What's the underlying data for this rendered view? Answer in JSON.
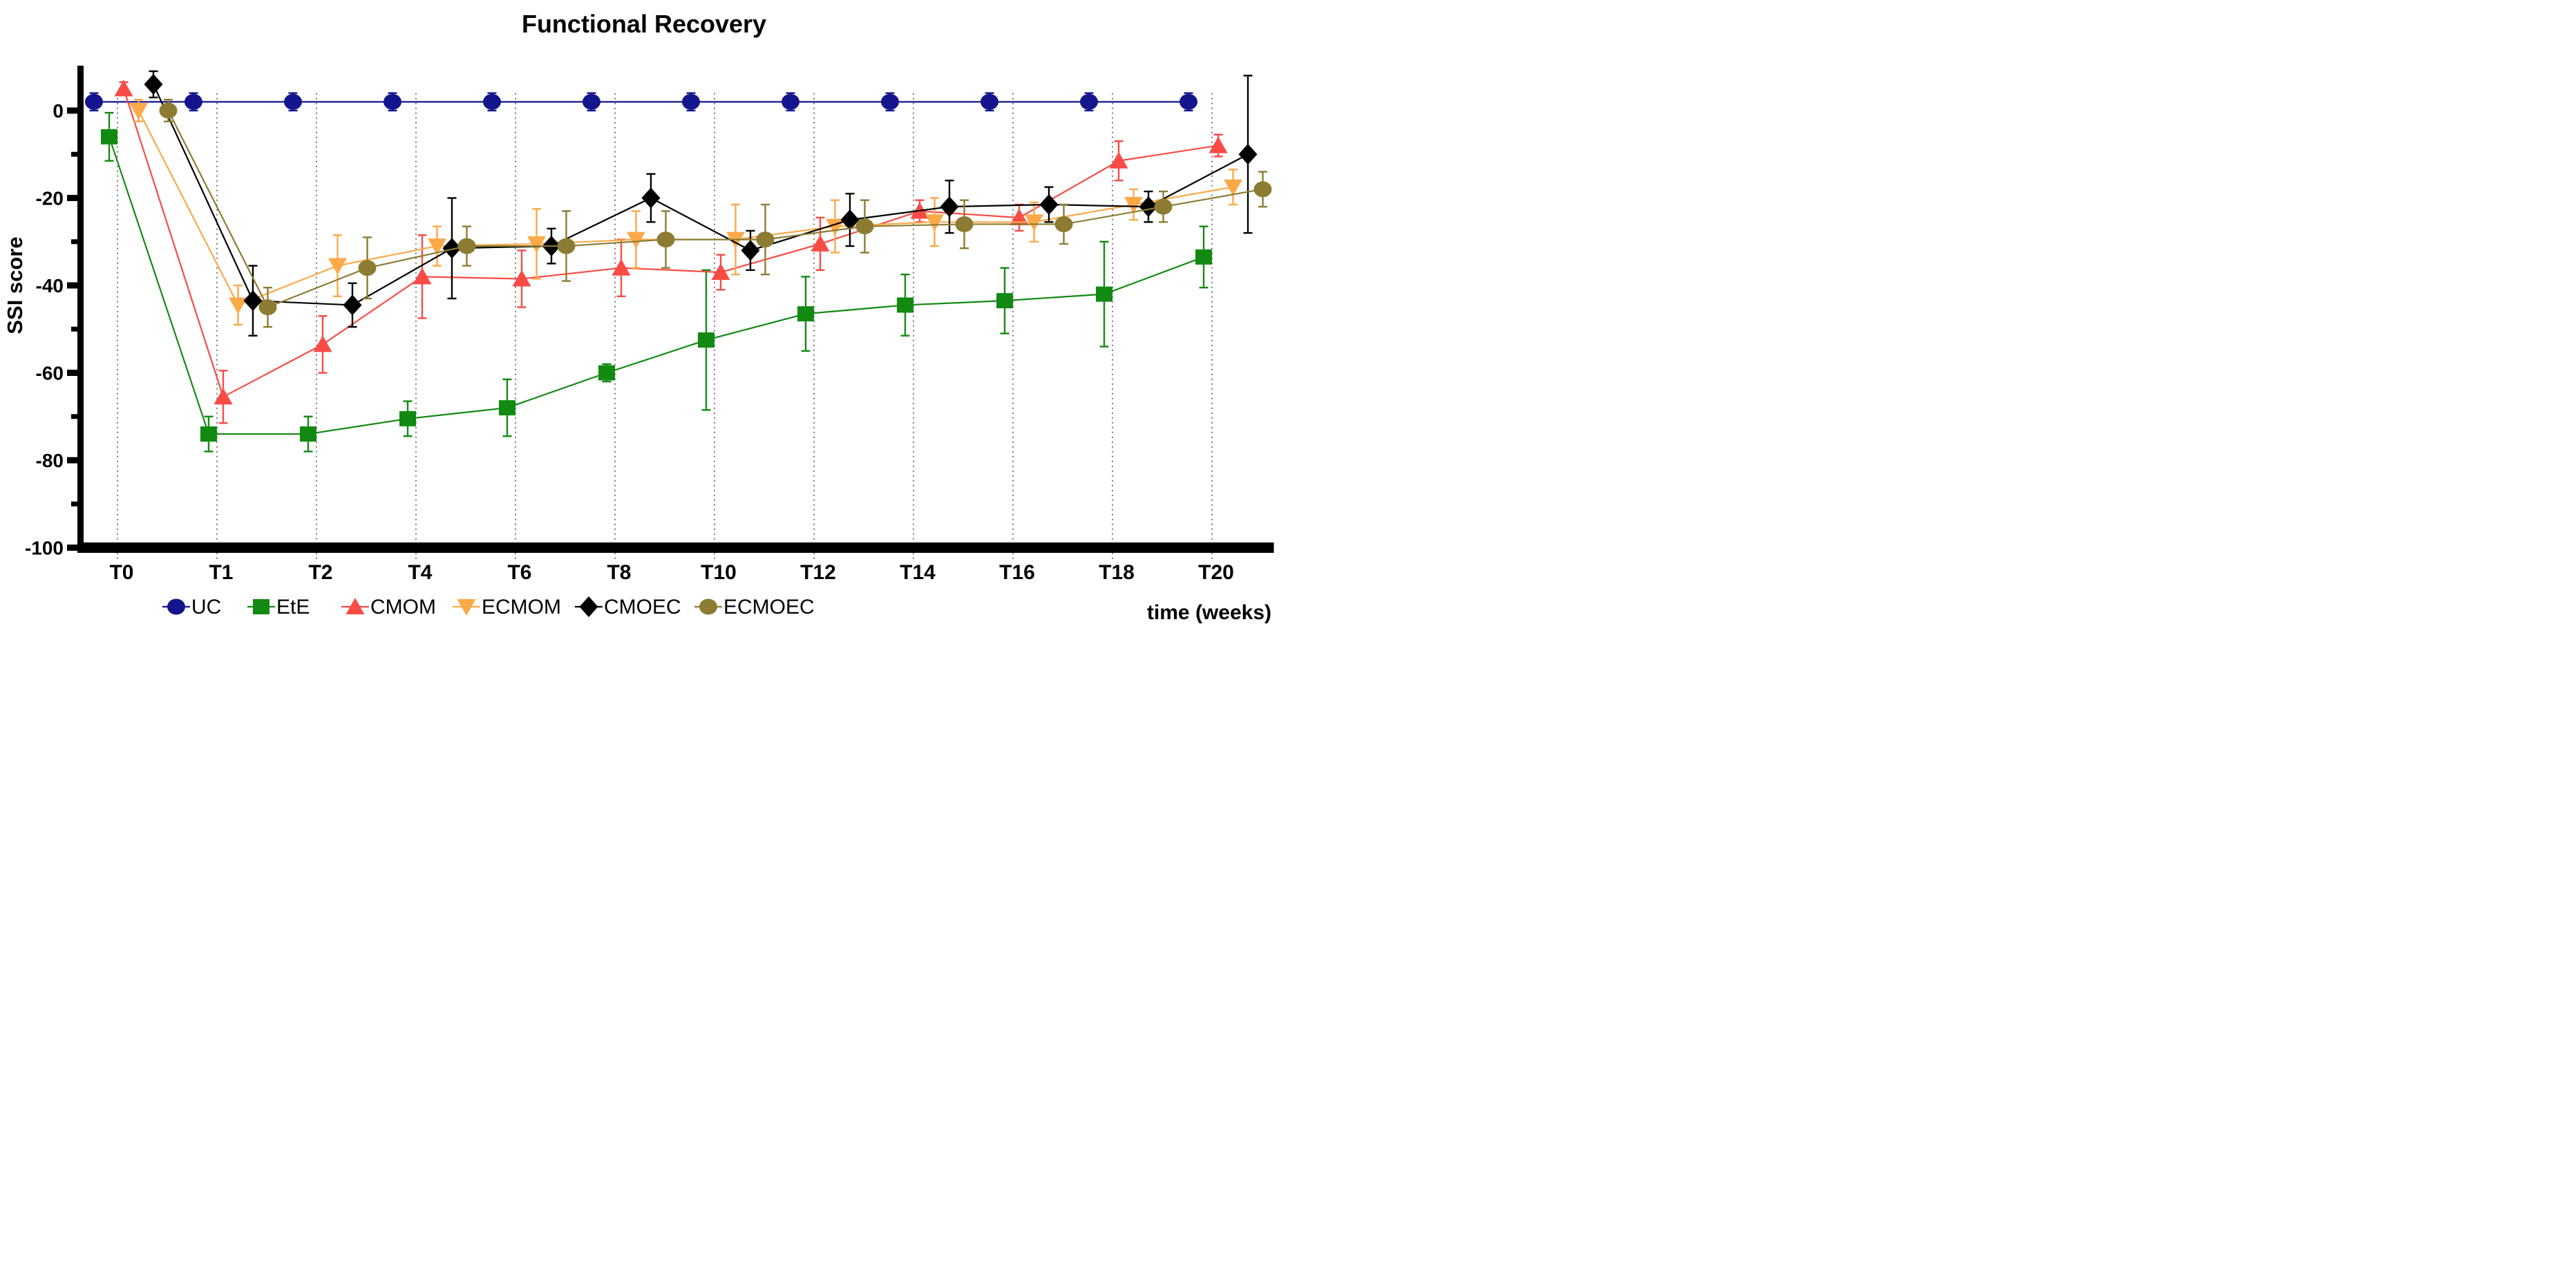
{
  "title": "Functional Recovery",
  "y_axis_label": "SSI score",
  "x_axis_label": "time (weeks)",
  "chart_data": {
    "type": "line",
    "categories": [
      "T0",
      "T1",
      "T2",
      "T4",
      "T6",
      "T8",
      "T10",
      "T12",
      "T14",
      "T16",
      "T18",
      "T20"
    ],
    "ylim": [
      -100,
      10
    ],
    "yticks": [
      0,
      -20,
      -40,
      -60,
      -80,
      -100
    ],
    "grid": "vertical-dotted",
    "legend_position": "bottom",
    "error_bars": true,
    "series": [
      {
        "name": "UC",
        "color": "#14148C",
        "marker": "circle",
        "values": [
          2,
          2,
          2,
          2,
          2,
          2,
          2,
          2,
          2,
          2,
          2,
          2
        ],
        "errors": [
          2,
          2,
          2,
          2,
          2,
          2,
          2,
          2,
          2,
          2,
          2,
          2
        ]
      },
      {
        "name": "EtE",
        "color": "#128A12",
        "marker": "square",
        "values": [
          -6,
          -74,
          -74,
          -70.5,
          -68,
          -60,
          -52.5,
          -46.5,
          -44.5,
          -43.5,
          -42,
          -33.5
        ],
        "errors": [
          5.5,
          4,
          4,
          4,
          6.5,
          2,
          16,
          8.5,
          7,
          7.5,
          12,
          7
        ]
      },
      {
        "name": "CMOM",
        "color": "#FA4B45",
        "marker": "triangle-up",
        "values": [
          5,
          -65.5,
          -53.5,
          -38,
          -38.5,
          -36,
          -37,
          -30.5,
          -23,
          -24.5,
          -11.5,
          -8
        ],
        "errors": [
          1.5,
          6,
          6.5,
          9.5,
          6.5,
          6.5,
          4,
          6,
          2.5,
          3,
          4.5,
          2.5
        ]
      },
      {
        "name": "ECMOM",
        "color": "#FCA94A",
        "marker": "triangle-down",
        "values": [
          0,
          -44.5,
          -35.5,
          -31,
          -30.5,
          -29.5,
          -29.5,
          -26.5,
          -25.5,
          -25.5,
          -21.5,
          -17.5
        ],
        "errors": [
          2.5,
          4.5,
          7,
          4.5,
          8,
          6.5,
          8,
          6,
          5.5,
          4.5,
          3.5,
          4
        ]
      },
      {
        "name": "CMOEC",
        "color": "#000000",
        "marker": "diamond",
        "values": [
          6,
          -43.5,
          -44.5,
          -31.5,
          -31,
          -20,
          -32,
          -25,
          -22,
          -21.5,
          -22,
          -10
        ],
        "errors": [
          3,
          8,
          5,
          11.5,
          4,
          5.5,
          4.5,
          6,
          6,
          4,
          3.5,
          18
        ]
      },
      {
        "name": "ECMOEC",
        "color": "#8C7C33",
        "marker": "circle",
        "values": [
          0,
          -45,
          -36,
          -31,
          -31,
          -29.5,
          -29.5,
          -26.5,
          -26,
          -26,
          -22,
          -18
        ],
        "errors": [
          2.5,
          4.5,
          7,
          4.5,
          8,
          6.5,
          8,
          6,
          5.5,
          4.5,
          3.5,
          4
        ]
      }
    ]
  }
}
